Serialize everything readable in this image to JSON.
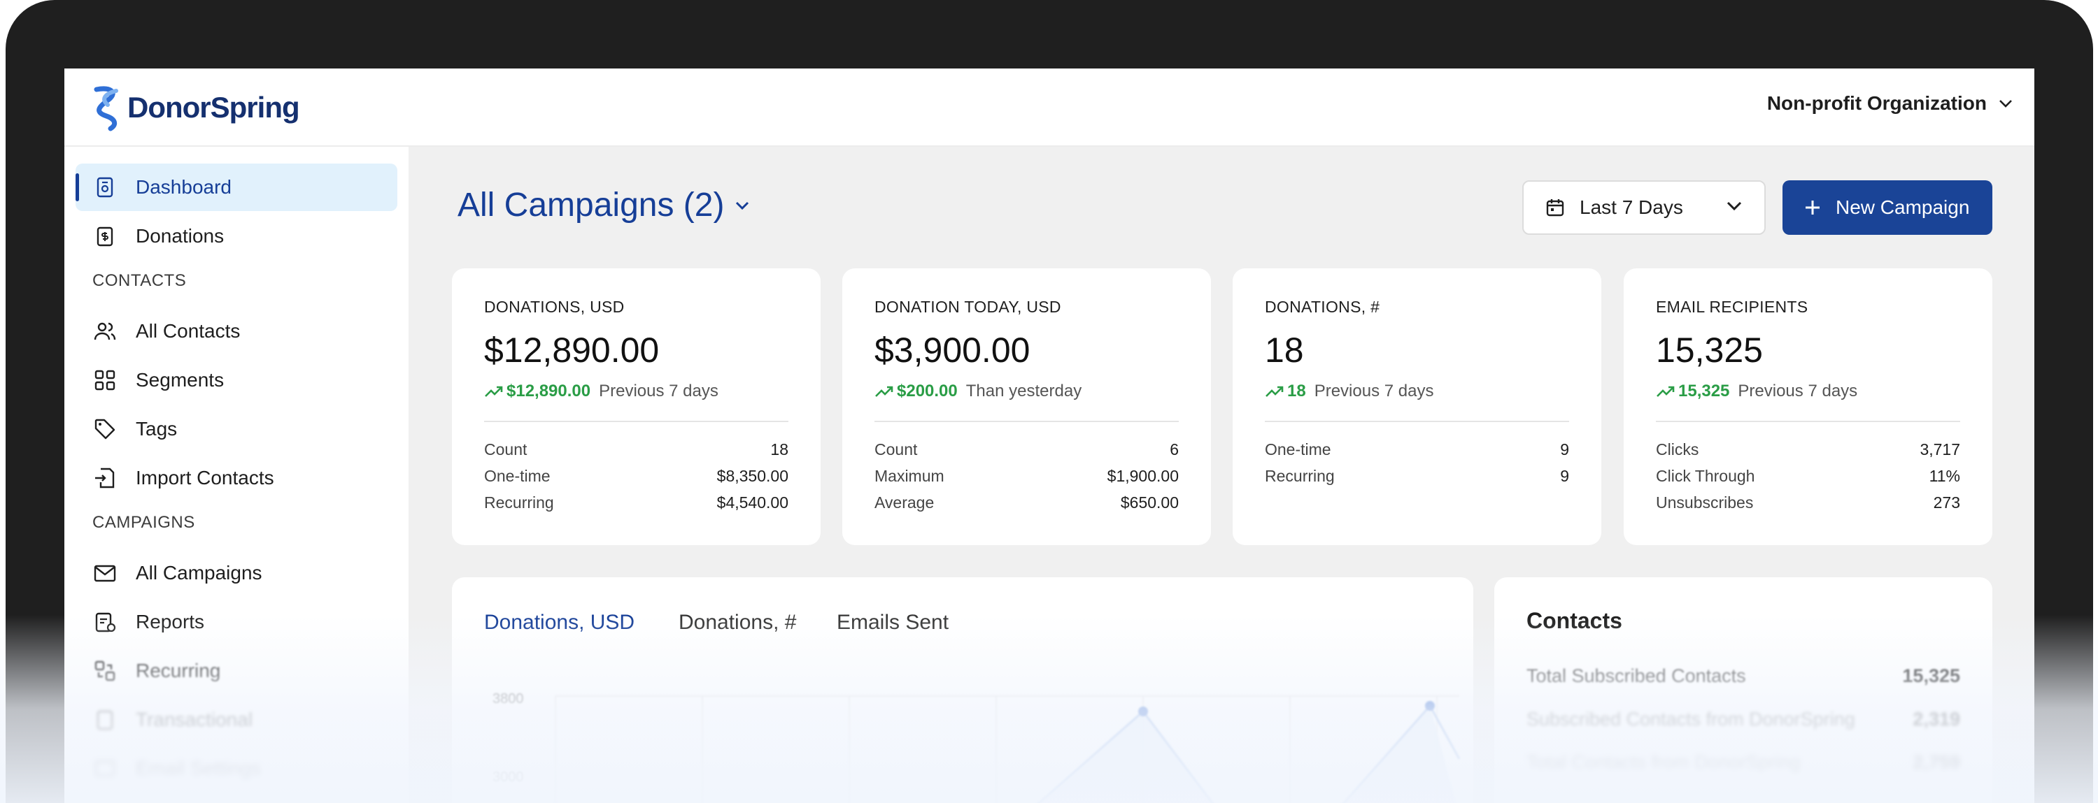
{
  "brand": {
    "name": "DonorSpring"
  },
  "org_menu": {
    "label": "Non-profit Organization"
  },
  "sidebar": {
    "items_top": [
      {
        "label": "Dashboard",
        "icon": "dashboard-icon",
        "active": true
      },
      {
        "label": "Donations",
        "icon": "donations-icon"
      }
    ],
    "contacts_section": "CONTACTS",
    "contacts_items": [
      {
        "label": "All Contacts",
        "icon": "users-icon"
      },
      {
        "label": "Segments",
        "icon": "segments-icon"
      },
      {
        "label": "Tags",
        "icon": "tag-icon"
      },
      {
        "label": "Import Contacts",
        "icon": "import-icon"
      }
    ],
    "campaigns_section": "CAMPAIGNS",
    "campaigns_items": [
      {
        "label": "All Campaigns",
        "icon": "mail-icon"
      },
      {
        "label": "Reports",
        "icon": "reports-icon"
      },
      {
        "label": "Recurring",
        "icon": "recurring-icon"
      },
      {
        "label": "Transactional",
        "icon": "transactional-icon"
      },
      {
        "label": "Email Settings",
        "icon": "email-settings-icon"
      }
    ]
  },
  "header": {
    "title": "All Campaigns (2)",
    "date_range": "Last 7 Days",
    "new_campaign": "New Campaign"
  },
  "cards": [
    {
      "title": "DONATIONS, USD",
      "value": "$12,890.00",
      "change": "$12,890.00",
      "change_label": "Previous 7 days",
      "rows": [
        {
          "k": "Count",
          "v": "18"
        },
        {
          "k": "One-time",
          "v": "$8,350.00"
        },
        {
          "k": "Recurring",
          "v": "$4,540.00"
        }
      ]
    },
    {
      "title": "DONATION TODAY, USD",
      "value": "$3,900.00",
      "change": "$200.00",
      "change_label": "Than yesterday",
      "rows": [
        {
          "k": "Count",
          "v": "6"
        },
        {
          "k": "Maximum",
          "v": "$1,900.00"
        },
        {
          "k": "Average",
          "v": "$650.00"
        }
      ]
    },
    {
      "title": "DONATIONS, #",
      "value": "18",
      "change": "18",
      "change_label": "Previous 7 days",
      "rows": [
        {
          "k": "One-time",
          "v": "9"
        },
        {
          "k": "Recurring",
          "v": "9"
        }
      ]
    },
    {
      "title": "EMAIL RECIPIENTS",
      "value": "15,325",
      "change": "15,325",
      "change_label": "Previous 7 days",
      "rows": [
        {
          "k": "Clicks",
          "v": "3,717"
        },
        {
          "k": "Click Through",
          "v": "11%"
        },
        {
          "k": "Unsubscribes",
          "v": "273"
        }
      ]
    }
  ],
  "chart_tabs": [
    "Donations, USD",
    "Donations, #",
    "Emails Sent"
  ],
  "chart_data": {
    "type": "line",
    "y_ticks": [
      "3800",
      "3000"
    ],
    "x_categories": 7
  },
  "contacts": {
    "title": "Contacts",
    "rows": [
      {
        "k": "Total Subscribed Contacts",
        "v": "15,325"
      },
      {
        "k": "Subscribed Contacts from DonorSpring",
        "v": "2,319"
      },
      {
        "k": "Total Contacts from DonorSpring",
        "v": "2,759"
      }
    ]
  },
  "colors": {
    "accent": "#163e97",
    "positive": "#2a9d46",
    "active_bg": "#e1f1fc"
  }
}
